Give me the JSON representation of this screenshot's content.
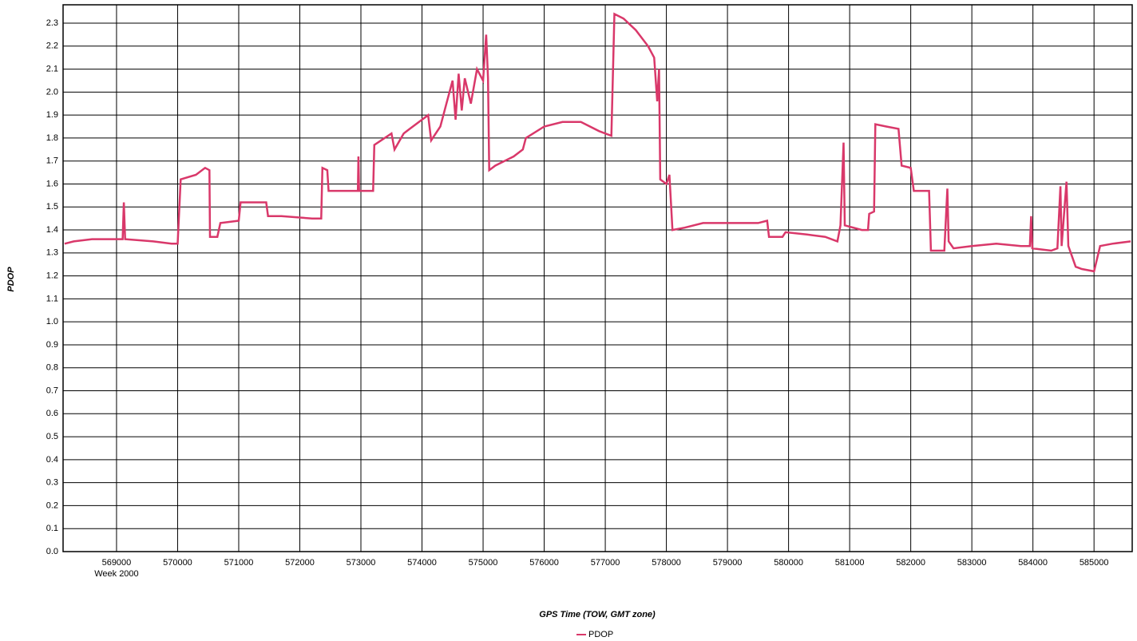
{
  "chart_data": {
    "type": "line",
    "x_label": "GPS Time (TOW, GMT zone)",
    "y_label": "PDOP",
    "annotation": "Week 2000",
    "x": [
      568150,
      568300,
      568600,
      569100,
      569120,
      569140,
      569600,
      569900,
      570000,
      570050,
      570300,
      570450,
      570520,
      570530,
      570650,
      570700,
      571000,
      571030,
      571450,
      571480,
      571700,
      572200,
      572350,
      572370,
      572450,
      572470,
      572950,
      572960,
      572970,
      573200,
      573220,
      573500,
      573550,
      573700,
      573800,
      574100,
      574150,
      574300,
      574400,
      574500,
      574550,
      574600,
      574650,
      574700,
      574800,
      574900,
      575000,
      575050,
      575080,
      575100,
      575200,
      575500,
      575650,
      575700,
      576000,
      576300,
      576600,
      576900,
      577100,
      577150,
      577300,
      577500,
      577700,
      577800,
      577850,
      577880,
      577900,
      578000,
      578050,
      578100,
      578300,
      578600,
      579000,
      579500,
      579650,
      579680,
      579900,
      579950,
      580300,
      580600,
      580800,
      580850,
      580900,
      580920,
      581200,
      581300,
      581320,
      581400,
      581420,
      581600,
      581800,
      581850,
      582000,
      582050,
      582300,
      582330,
      582550,
      582600,
      582620,
      582700,
      583000,
      583400,
      583800,
      583950,
      583970,
      583990,
      584300,
      584400,
      584450,
      584470,
      584550,
      584580,
      584700,
      584800,
      585000,
      585100,
      585300,
      585600
    ],
    "series": [
      {
        "name": "PDOP",
        "color": "#d9386a",
        "values": [
          1.34,
          1.35,
          1.36,
          1.36,
          1.52,
          1.36,
          1.35,
          1.34,
          1.34,
          1.62,
          1.64,
          1.67,
          1.66,
          1.37,
          1.37,
          1.43,
          1.44,
          1.52,
          1.52,
          1.46,
          1.46,
          1.45,
          1.45,
          1.67,
          1.66,
          1.57,
          1.57,
          1.72,
          1.57,
          1.57,
          1.77,
          1.82,
          1.75,
          1.82,
          1.84,
          1.9,
          1.79,
          1.85,
          1.95,
          2.05,
          1.88,
          2.08,
          1.92,
          2.06,
          1.95,
          2.1,
          2.05,
          2.25,
          2.06,
          1.66,
          1.68,
          1.72,
          1.75,
          1.8,
          1.85,
          1.87,
          1.87,
          1.83,
          1.81,
          2.34,
          2.32,
          2.27,
          2.2,
          2.15,
          1.96,
          2.1,
          1.62,
          1.6,
          1.64,
          1.4,
          1.41,
          1.43,
          1.43,
          1.43,
          1.44,
          1.37,
          1.37,
          1.39,
          1.38,
          1.37,
          1.35,
          1.42,
          1.78,
          1.42,
          1.4,
          1.4,
          1.47,
          1.48,
          1.86,
          1.85,
          1.84,
          1.68,
          1.67,
          1.57,
          1.57,
          1.31,
          1.31,
          1.58,
          1.35,
          1.32,
          1.33,
          1.34,
          1.33,
          1.33,
          1.46,
          1.32,
          1.31,
          1.32,
          1.59,
          1.33,
          1.61,
          1.33,
          1.24,
          1.23,
          1.22,
          1.33,
          1.34,
          1.35
        ]
      }
    ],
    "xlim": [
      568125,
      585625
    ],
    "xticks": [
      569000,
      570000,
      571000,
      572000,
      573000,
      574000,
      575000,
      576000,
      577000,
      578000,
      579000,
      580000,
      581000,
      582000,
      583000,
      584000,
      585000
    ],
    "ylim": [
      0,
      2.38
    ],
    "yticks": [
      {
        "value": 0,
        "label": "0.0"
      },
      0.1,
      0.2,
      0.3,
      0.4,
      0.5,
      0.6,
      0.7,
      0.8,
      0.9,
      {
        "value": 1,
        "label": "1.0"
      },
      1.1,
      1.2,
      1.3,
      1.4,
      1.5,
      1.6,
      1.7,
      1.8,
      1.9,
      {
        "value": 2,
        "label": "2.0"
      },
      2.1,
      2.2,
      2.3
    ],
    "grid": true,
    "legend": "bottom"
  }
}
